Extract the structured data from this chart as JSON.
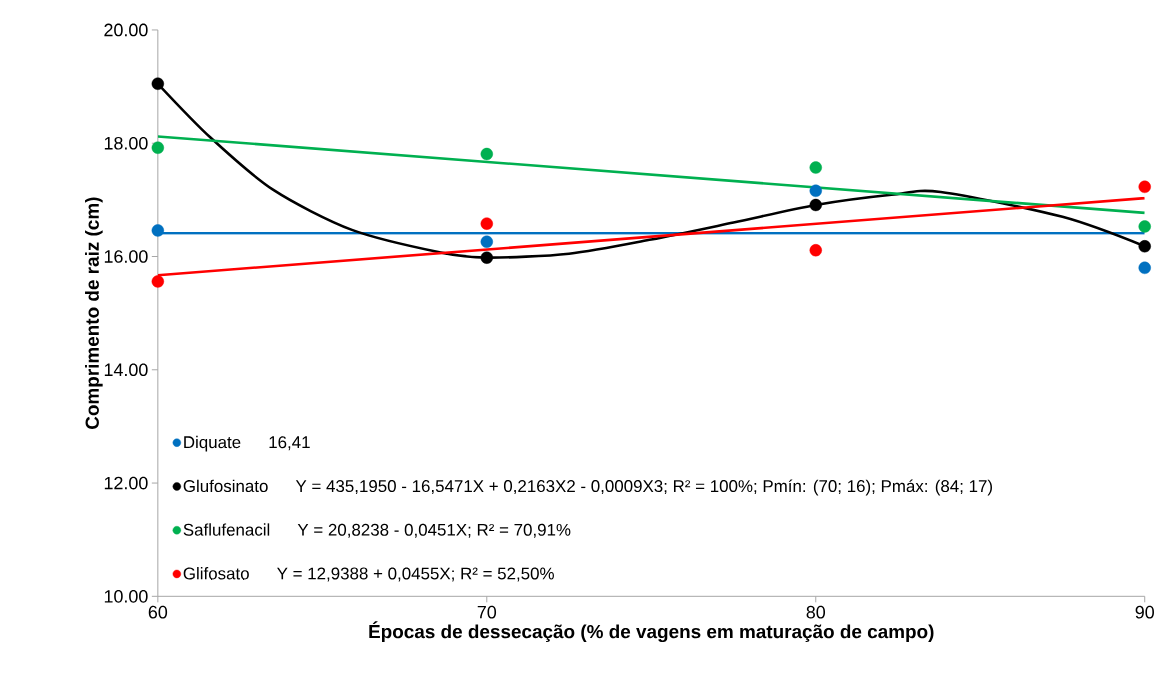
{
  "chart_data": {
    "type": "scatter",
    "xlabel": "Épocas de dessecação (% de vagens em maturação de campo)",
    "ylabel": "Comprimento de raiz (cm)",
    "xlim": [
      60,
      90
    ],
    "xticks": [
      60,
      70,
      80,
      90
    ],
    "ylim": [
      10,
      20
    ],
    "yticks": [
      {
        "value": 10,
        "label": "10.00"
      },
      {
        "value": 12,
        "label": "12.00"
      },
      {
        "value": 14,
        "label": "14.00"
      },
      {
        "value": 16,
        "label": "16.00"
      },
      {
        "value": 18,
        "label": "18.00"
      },
      {
        "value": 20,
        "label": "20.00"
      }
    ],
    "grid": false,
    "legend": "bottom left",
    "annotations": [
      "16,41",
      "Y = 435,1950 - 16,5471X + 0,2163X2 - 0,0009X3; R² = 100%; Pmín: (70; 16); Pmáx: (84; 17)",
      "Y = 20,8238 - 0,0451X; R² = 70,91%",
      "Y = 12,9388 + 0,0455X; R² = 52,50%"
    ],
    "series": [
      {
        "name": "Diquate",
        "marker": "circle",
        "color": "#0070c0",
        "x": [
          60,
          70,
          80,
          90
        ],
        "values": [
          16.46,
          16.26,
          17.16,
          15.8
        ]
      },
      {
        "name": "Glufosinato",
        "marker": "circle",
        "color": "#000000",
        "x": [
          60,
          70,
          80,
          90
        ],
        "values": [
          19.05,
          15.98,
          16.91,
          16.18
        ]
      },
      {
        "name": "Saflufenacil",
        "marker": "circle",
        "color": "#00b050",
        "x": [
          60,
          70,
          80,
          90
        ],
        "values": [
          17.92,
          17.81,
          17.57,
          16.53
        ]
      },
      {
        "name": "Glifosato",
        "marker": "circle",
        "color": "#ff0000",
        "x": [
          60,
          70,
          80,
          90
        ],
        "values": [
          15.56,
          16.58,
          16.11,
          17.23
        ]
      },
      {
        "type": "line",
        "marker": "none",
        "color": "#0070c0",
        "x": [
          60,
          90
        ],
        "values": [
          16.41,
          16.41
        ]
      },
      {
        "type": "line",
        "marker": "none",
        "color": "#000000",
        "x": [
          60,
          61.6,
          63.5,
          65.9,
          68.6,
          70,
          72.5,
          75,
          77.5,
          80,
          82.3,
          83.8,
          87.5,
          90
        ],
        "values": [
          19.05,
          18.1,
          17.18,
          16.47,
          16.07,
          15.98,
          16.05,
          16.3,
          16.6,
          16.91,
          17.09,
          17.14,
          16.7,
          16.18
        ]
      },
      {
        "type": "line",
        "marker": "none",
        "color": "#00b050",
        "x": [
          60,
          90
        ],
        "values": [
          18.12,
          16.77
        ]
      },
      {
        "type": "line",
        "marker": "none",
        "color": "#ff0000",
        "x": [
          60,
          90
        ],
        "values": [
          15.67,
          17.03
        ]
      }
    ]
  }
}
